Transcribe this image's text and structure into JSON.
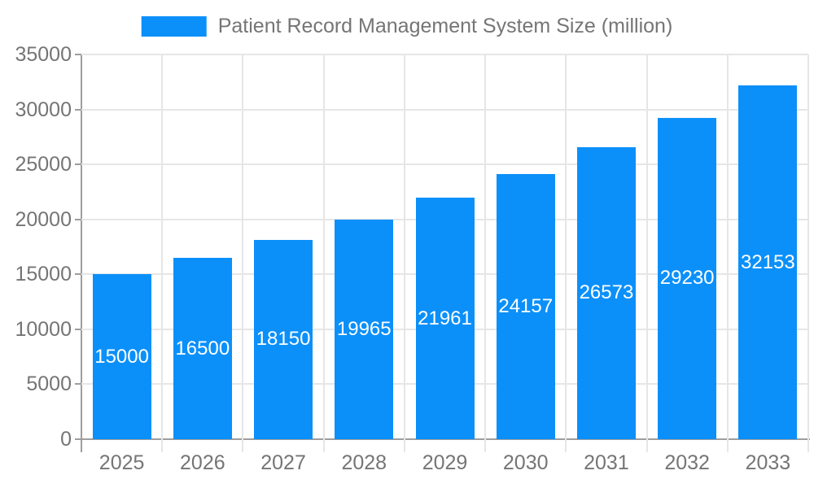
{
  "chart_data": {
    "type": "bar",
    "categories": [
      "2025",
      "2026",
      "2027",
      "2028",
      "2029",
      "2030",
      "2031",
      "2032",
      "2033"
    ],
    "series": [
      {
        "name": "Patient Record Management System Size (million)",
        "values": [
          15000,
          16500,
          18150,
          19965,
          21961,
          24157,
          26573,
          29230,
          32153
        ]
      }
    ],
    "title": "Patient Record Management System Size (million)",
    "xlabel": "",
    "ylabel": "",
    "ylim": [
      0,
      35000
    ],
    "yticks": [
      0,
      5000,
      10000,
      15000,
      20000,
      25000,
      30000,
      35000
    ],
    "grid": true,
    "legend_position": "top",
    "value_labels": "inside-center"
  },
  "colors": {
    "bar": "#0b90fa",
    "gridline": "#e6e6e6",
    "axis": "#9e9e9e",
    "tick_text": "#757575",
    "value_label": "#ffffff"
  }
}
